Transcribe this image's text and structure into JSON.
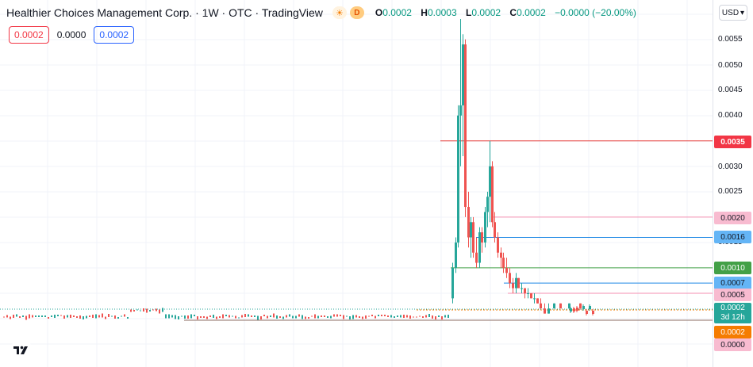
{
  "header": {
    "title": "Healthier Choices Management Corp. · 1W · OTC · TradingView",
    "sun_icon": "sun-icon",
    "day_badge": "D",
    "ohlc": {
      "o_key": "O",
      "o_val": "0.0002",
      "h_key": "H",
      "h_val": "0.0003",
      "l_key": "L",
      "l_val": "0.0002",
      "c_key": "C",
      "c_val": "0.0002",
      "change": "−0.0000 (−20.00%)"
    }
  },
  "trade": {
    "sell": "0.0002",
    "spread": "0.0000",
    "buy": "0.0002"
  },
  "currency_button": "USD",
  "colors": {
    "up": "#26a69a",
    "down": "#ef5350",
    "red_line": "#e53935",
    "pink_line": "#f48fb1",
    "blue_line": "#1e88e5",
    "green_line": "#43a047",
    "brown_line": "#8d6e63",
    "orange": "#f57c00"
  },
  "price_scale": {
    "ticks": [
      "0.0055",
      "0.0050",
      "0.0045",
      "0.0040",
      "0.0030",
      "0.0025",
      "0.0015"
    ],
    "labels": [
      {
        "text": "0.0035",
        "style": "red"
      },
      {
        "text": "0.0020",
        "style": "pink"
      },
      {
        "text": "0.0016",
        "style": "blue"
      },
      {
        "text": "0.0010",
        "style": "green"
      },
      {
        "text": "0.0007",
        "style": "blue"
      },
      {
        "text": "0.0005",
        "style": "pink"
      },
      {
        "text": "0.0002",
        "sub": "3d 12h",
        "style": "green-big"
      },
      {
        "text": "0.0002",
        "style": "orange"
      },
      {
        "text": "0.0000",
        "style": "pink"
      }
    ]
  },
  "chart_data": {
    "type": "candlestick",
    "title": "Healthier Choices Management Corp. · 1W · OTC",
    "y_range": [
      0.0,
      0.0059
    ],
    "levels": [
      {
        "value": 0.0035,
        "color": "red"
      },
      {
        "value": 0.002,
        "color": "pink"
      },
      {
        "value": 0.0016,
        "color": "blue"
      },
      {
        "value": 0.001,
        "color": "green"
      },
      {
        "value": 0.0007,
        "color": "blue"
      },
      {
        "value": 0.0005,
        "color": "pink"
      },
      {
        "value": 0.0002,
        "color": "orange-dotted"
      },
      {
        "value": 0.0,
        "color": "brown"
      }
    ],
    "candles": [
      {
        "o": 0.0004,
        "h": 0.0011,
        "l": 0.0003,
        "c": 0.001
      },
      {
        "o": 0.001,
        "h": 0.0016,
        "l": 0.0009,
        "c": 0.0015
      },
      {
        "o": 0.0015,
        "h": 0.0042,
        "l": 0.0014,
        "c": 0.004
      },
      {
        "o": 0.004,
        "h": 0.0059,
        "l": 0.003,
        "c": 0.0042
      },
      {
        "o": 0.0042,
        "h": 0.0056,
        "l": 0.0032,
        "c": 0.0054
      },
      {
        "o": 0.0054,
        "h": 0.0055,
        "l": 0.002,
        "c": 0.0022
      },
      {
        "o": 0.0022,
        "h": 0.0025,
        "l": 0.0014,
        "c": 0.0016
      },
      {
        "o": 0.0016,
        "h": 0.002,
        "l": 0.0012,
        "c": 0.0019
      },
      {
        "o": 0.0019,
        "h": 0.002,
        "l": 0.0012,
        "c": 0.0013
      },
      {
        "o": 0.0013,
        "h": 0.0016,
        "l": 0.001,
        "c": 0.0011
      },
      {
        "o": 0.0011,
        "h": 0.0018,
        "l": 0.001,
        "c": 0.0017
      },
      {
        "o": 0.0017,
        "h": 0.0018,
        "l": 0.0013,
        "c": 0.0015
      },
      {
        "o": 0.0015,
        "h": 0.0022,
        "l": 0.0014,
        "c": 0.0021
      },
      {
        "o": 0.0021,
        "h": 0.0025,
        "l": 0.0018,
        "c": 0.0024
      },
      {
        "o": 0.0024,
        "h": 0.0035,
        "l": 0.0019,
        "c": 0.003
      },
      {
        "o": 0.003,
        "h": 0.0031,
        "l": 0.0018,
        "c": 0.0019
      },
      {
        "o": 0.0019,
        "h": 0.0021,
        "l": 0.0015,
        "c": 0.0016
      },
      {
        "o": 0.0016,
        "h": 0.0017,
        "l": 0.0012,
        "c": 0.0013
      },
      {
        "o": 0.0013,
        "h": 0.0014,
        "l": 0.001,
        "c": 0.0012
      },
      {
        "o": 0.0012,
        "h": 0.0013,
        "l": 0.0009,
        "c": 0.001
      },
      {
        "o": 0.001,
        "h": 0.0012,
        "l": 0.0008,
        "c": 0.0009
      },
      {
        "o": 0.0009,
        "h": 0.001,
        "l": 0.0006,
        "c": 0.0007
      },
      {
        "o": 0.0007,
        "h": 0.0008,
        "l": 0.0005,
        "c": 0.0006
      },
      {
        "o": 0.0006,
        "h": 0.0009,
        "l": 0.0005,
        "c": 0.0008
      },
      {
        "o": 0.0008,
        "h": 0.0008,
        "l": 0.0006,
        "c": 0.0006
      },
      {
        "o": 0.0006,
        "h": 0.0007,
        "l": 0.0005,
        "c": 0.0006
      },
      {
        "o": 0.0006,
        "h": 0.0006,
        "l": 0.0004,
        "c": 0.0005
      },
      {
        "o": 0.0005,
        "h": 0.0006,
        "l": 0.0004,
        "c": 0.0005
      },
      {
        "o": 0.0005,
        "h": 0.0005,
        "l": 0.0004,
        "c": 0.0004
      },
      {
        "o": 0.0004,
        "h": 0.0005,
        "l": 0.0003,
        "c": 0.0004
      },
      {
        "o": 0.0004,
        "h": 0.0004,
        "l": 0.0003,
        "c": 0.0003
      },
      {
        "o": 0.0003,
        "h": 0.0004,
        "l": 0.0002,
        "c": 0.0002
      },
      {
        "o": 0.0002,
        "h": 0.0003,
        "l": 0.0001,
        "c": 0.0001
      },
      {
        "o": 0.0001,
        "h": 0.0003,
        "l": 0.0001,
        "c": 0.0002
      },
      {
        "o": 0.0002,
        "h": 0.0003,
        "l": 0.0002,
        "c": 0.0003
      },
      {
        "o": 0.0003,
        "h": 0.0003,
        "l": 0.0002,
        "c": 0.0002
      },
      {
        "o": 0.0002,
        "h": 0.0003,
        "l": 0.0002,
        "c": 0.0003
      },
      {
        "o": 0.0003,
        "h": 0.0003,
        "l": 0.0002,
        "c": 0.0002
      }
    ]
  }
}
